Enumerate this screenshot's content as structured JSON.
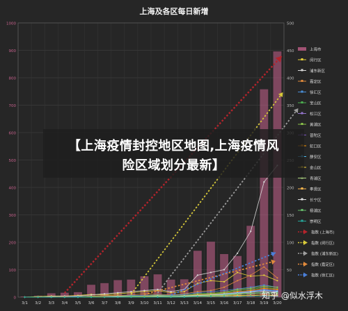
{
  "chart_data": {
    "type": "bar",
    "title": "上海及各区每日新增",
    "x": [
      "3/1",
      "3/2",
      "3/3",
      "3/4",
      "3/5",
      "3/6",
      "3/7",
      "3/8",
      "3/9",
      "3/10",
      "3/11",
      "3/12",
      "3/13",
      "3/14",
      "3/15",
      "3/16",
      "3/17",
      "3/18",
      "3/19",
      "3/20"
    ],
    "ylim_left": [
      0,
      1000
    ],
    "yticks_left": [
      "0",
      "100",
      "200",
      "300",
      "400",
      "500",
      "600",
      "700",
      "800",
      "900",
      "1000"
    ],
    "ylim_right": [
      0,
      500
    ],
    "yticks_right": [
      "0",
      "50",
      "100",
      "150",
      "200",
      "250",
      "300",
      "350",
      "400",
      "450",
      "500"
    ],
    "grid": true,
    "legend_position": "right",
    "series": [
      {
        "name": "上海市",
        "kind": "bar",
        "color": "#c9628e",
        "axis": "left",
        "values": [
          2,
          5,
          14,
          16,
          18,
          45,
          51,
          62,
          64,
          76,
          83,
          64,
          65,
          169,
          202,
          157,
          150,
          260,
          758,
          896
        ]
      },
      {
        "name": "闵行区",
        "kind": "line",
        "color": "#e8d23a",
        "axis": "right",
        "values": [
          0,
          1,
          2,
          2,
          3,
          5,
          4,
          6,
          8,
          10,
          12,
          8,
          10,
          25,
          30,
          28,
          45,
          38,
          40,
          30
        ]
      },
      {
        "name": "浦东新区",
        "kind": "line",
        "color": "#d9d9d9",
        "axis": "right",
        "values": [
          0,
          0,
          1,
          2,
          2,
          4,
          6,
          8,
          10,
          12,
          14,
          10,
          14,
          40,
          45,
          50,
          80,
          120,
          210,
          240
        ]
      },
      {
        "name": "嘉定区",
        "kind": "line",
        "color": "#e08a3c",
        "axis": "right",
        "values": [
          0,
          0,
          0,
          1,
          1,
          2,
          3,
          3,
          4,
          6,
          5,
          4,
          6,
          10,
          12,
          18,
          30,
          40,
          55,
          35
        ]
      },
      {
        "name": "徐汇区",
        "kind": "line",
        "color": "#4a8fd8",
        "axis": "right",
        "values": [
          0,
          0,
          0,
          0,
          1,
          1,
          2,
          2,
          3,
          3,
          4,
          3,
          5,
          8,
          10,
          12,
          15,
          18,
          22,
          18
        ]
      },
      {
        "name": "宝山区",
        "kind": "line",
        "color": "#4caf50",
        "axis": "right",
        "values": [
          0,
          0,
          0,
          0,
          0,
          1,
          1,
          1,
          2,
          2,
          3,
          2,
          3,
          5,
          6,
          8,
          12,
          14,
          18,
          15
        ]
      },
      {
        "name": "松江区",
        "kind": "line",
        "color": "#9575cd",
        "axis": "right",
        "values": [
          0,
          0,
          0,
          0,
          0,
          0,
          1,
          1,
          1,
          2,
          2,
          2,
          2,
          4,
          5,
          6,
          9,
          11,
          14,
          12
        ]
      },
      {
        "name": "黄浦区",
        "kind": "line",
        "color": "#8bc34a",
        "axis": "right",
        "values": [
          0,
          0,
          0,
          0,
          0,
          1,
          1,
          2,
          2,
          2,
          3,
          2,
          3,
          6,
          7,
          9,
          14,
          16,
          20,
          18
        ]
      },
      {
        "name": "普陀区",
        "kind": "line",
        "color": "#7e57c2",
        "axis": "right",
        "values": [
          0,
          0,
          0,
          0,
          0,
          0,
          0,
          1,
          1,
          1,
          2,
          1,
          2,
          3,
          4,
          5,
          8,
          10,
          12,
          10
        ]
      },
      {
        "name": "虹口区",
        "kind": "line",
        "color": "#ff9800",
        "axis": "right",
        "values": [
          0,
          0,
          0,
          0,
          0,
          0,
          1,
          1,
          1,
          2,
          2,
          1,
          2,
          4,
          5,
          7,
          10,
          12,
          16,
          14
        ]
      },
      {
        "name": "静安区",
        "kind": "line",
        "color": "#4fc3f7",
        "axis": "right",
        "values": [
          0,
          0,
          0,
          0,
          0,
          0,
          0,
          1,
          1,
          1,
          1,
          1,
          2,
          3,
          4,
          6,
          8,
          10,
          13,
          11
        ]
      },
      {
        "name": "金山区",
        "kind": "line",
        "color": "#fdd835",
        "axis": "right",
        "values": [
          0,
          0,
          0,
          0,
          0,
          0,
          0,
          0,
          0,
          1,
          1,
          0,
          1,
          1,
          2,
          2,
          3,
          3,
          4,
          3
        ]
      },
      {
        "name": "青浦区",
        "kind": "line",
        "color": "#aed581",
        "axis": "right",
        "values": [
          0,
          0,
          0,
          0,
          0,
          0,
          0,
          0,
          1,
          1,
          1,
          1,
          1,
          2,
          3,
          3,
          5,
          6,
          7,
          6
        ]
      },
      {
        "name": "奉贤区",
        "kind": "line",
        "color": "#ffb74d",
        "axis": "right",
        "values": [
          0,
          0,
          0,
          0,
          0,
          0,
          0,
          0,
          0,
          0,
          1,
          0,
          1,
          1,
          1,
          2,
          2,
          3,
          4,
          3
        ]
      },
      {
        "name": "长宁区",
        "kind": "line",
        "color": "#e0e0e0",
        "axis": "right",
        "values": [
          0,
          0,
          0,
          0,
          0,
          0,
          0,
          1,
          1,
          1,
          2,
          1,
          2,
          3,
          4,
          5,
          7,
          9,
          11,
          9
        ]
      },
      {
        "name": "杨浦区",
        "kind": "line",
        "color": "#66bb6a",
        "axis": "right",
        "values": [
          0,
          0,
          0,
          0,
          0,
          0,
          0,
          0,
          1,
          1,
          1,
          1,
          1,
          2,
          3,
          4,
          6,
          7,
          9,
          8
        ]
      },
      {
        "name": "崇明区",
        "kind": "line",
        "color": "#26a69a",
        "axis": "right",
        "values": [
          0,
          0,
          0,
          0,
          0,
          0,
          0,
          0,
          0,
          0,
          0,
          0,
          0,
          1,
          1,
          1,
          1,
          2,
          2,
          2
        ]
      }
    ],
    "trend_legend": [
      {
        "name": "指数 (上海市)",
        "color": "#b3242c"
      },
      {
        "name": "指数 (闵行区)",
        "color": "#d7c93a"
      },
      {
        "name": "指数 (浦东新区)",
        "color": "#9e9e9e"
      },
      {
        "name": "指数 (嘉定区)",
        "color": "#e08a3c"
      },
      {
        "name": "指数 (徐汇区)",
        "color": "#4a7fd8"
      }
    ]
  },
  "banner": {
    "line1": "【上海疫情封控地区地图,上海疫情风",
    "line2": "险区域划分最新】"
  },
  "watermark": "知乎 @似水浮木"
}
